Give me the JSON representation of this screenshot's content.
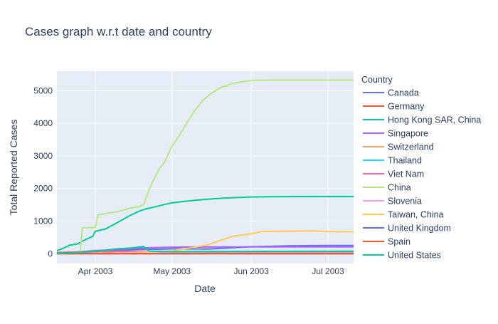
{
  "chart_data": {
    "type": "line",
    "title": "Cases graph w.r.t date and country",
    "xlabel": "Date",
    "ylabel": "Total Reported Cases",
    "legend_title": "Country",
    "legend_position": "right",
    "grid": true,
    "x_range": [
      "2003-03-17",
      "2003-07-11"
    ],
    "x_ticks": [
      {
        "date": "2003-04-01",
        "label": "Apr 2003"
      },
      {
        "date": "2003-05-01",
        "label": "May 2003"
      },
      {
        "date": "2003-06-01",
        "label": "Jun 2003"
      },
      {
        "date": "2003-07-01",
        "label": "Jul 2003"
      }
    ],
    "ylim": [
      -300,
      5600
    ],
    "y_ticks": [
      0,
      1000,
      2000,
      3000,
      4000,
      5000
    ],
    "series": [
      {
        "name": "Canada",
        "color": "#636efa",
        "points": [
          [
            "2003-03-17",
            8
          ],
          [
            "2003-03-25",
            15
          ],
          [
            "2003-04-01",
            62
          ],
          [
            "2003-04-10",
            97
          ],
          [
            "2003-04-20",
            132
          ],
          [
            "2003-04-26",
            140
          ],
          [
            "2003-05-01",
            149
          ],
          [
            "2003-05-15",
            143
          ],
          [
            "2003-06-01",
            214
          ],
          [
            "2003-06-15",
            240
          ],
          [
            "2003-07-01",
            251
          ],
          [
            "2003-07-11",
            251
          ]
        ]
      },
      {
        "name": "Germany",
        "color": "#EF553B",
        "points": [
          [
            "2003-03-17",
            3
          ],
          [
            "2003-04-01",
            5
          ],
          [
            "2003-04-15",
            6
          ],
          [
            "2003-05-01",
            9
          ],
          [
            "2003-06-01",
            10
          ],
          [
            "2003-07-11",
            10
          ]
        ]
      },
      {
        "name": "Hong Kong SAR, China",
        "color": "#00cc96",
        "points": [
          [
            "2003-03-17",
            95
          ],
          [
            "2003-03-19",
            150
          ],
          [
            "2003-03-22",
            260
          ],
          [
            "2003-03-25",
            300
          ],
          [
            "2003-03-28",
            425
          ],
          [
            "2003-03-31",
            530
          ],
          [
            "2003-04-01",
            685
          ],
          [
            "2003-04-05",
            760
          ],
          [
            "2003-04-10",
            970
          ],
          [
            "2003-04-14",
            1150
          ],
          [
            "2003-04-18",
            1300
          ],
          [
            "2003-04-21",
            1380
          ],
          [
            "2003-04-24",
            1430
          ],
          [
            "2003-04-28",
            1510
          ],
          [
            "2003-05-01",
            1560
          ],
          [
            "2003-05-05",
            1600
          ],
          [
            "2003-05-10",
            1640
          ],
          [
            "2003-05-15",
            1670
          ],
          [
            "2003-05-20",
            1700
          ],
          [
            "2003-05-25",
            1720
          ],
          [
            "2003-06-01",
            1740
          ],
          [
            "2003-06-10",
            1750
          ],
          [
            "2003-06-20",
            1755
          ],
          [
            "2003-07-01",
            1755
          ],
          [
            "2003-07-11",
            1755
          ]
        ]
      },
      {
        "name": "Singapore",
        "color": "#ab63fa",
        "points": [
          [
            "2003-03-17",
            20
          ],
          [
            "2003-03-25",
            55
          ],
          [
            "2003-04-01",
            95
          ],
          [
            "2003-04-10",
            126
          ],
          [
            "2003-04-20",
            178
          ],
          [
            "2003-05-01",
            201
          ],
          [
            "2003-05-15",
            205
          ],
          [
            "2003-06-01",
            206
          ],
          [
            "2003-07-01",
            206
          ],
          [
            "2003-07-11",
            206
          ]
        ]
      },
      {
        "name": "Switzerland",
        "color": "#FFA15A",
        "points": [
          [
            "2003-03-17",
            2
          ],
          [
            "2003-04-15",
            1
          ],
          [
            "2003-05-01",
            1
          ],
          [
            "2003-07-11",
            1
          ]
        ]
      },
      {
        "name": "Thailand",
        "color": "#19d3f3",
        "points": [
          [
            "2003-03-17",
            1
          ],
          [
            "2003-04-10",
            7
          ],
          [
            "2003-04-20",
            8
          ],
          [
            "2003-05-01",
            8
          ],
          [
            "2003-06-01",
            9
          ],
          [
            "2003-07-11",
            9
          ]
        ]
      },
      {
        "name": "Viet Nam",
        "color": "#FF6692",
        "points": [
          [
            "2003-03-17",
            40
          ],
          [
            "2003-03-25",
            55
          ],
          [
            "2003-04-01",
            58
          ],
          [
            "2003-04-15",
            62
          ],
          [
            "2003-05-01",
            63
          ],
          [
            "2003-06-01",
            63
          ],
          [
            "2003-07-11",
            63
          ]
        ]
      },
      {
        "name": "China",
        "color": "#B6E880",
        "points": [
          [
            "2003-03-17",
            0
          ],
          [
            "2003-03-26",
            0
          ],
          [
            "2003-03-27",
            792
          ],
          [
            "2003-04-01",
            806
          ],
          [
            "2003-04-02",
            1190
          ],
          [
            "2003-04-06",
            1250
          ],
          [
            "2003-04-10",
            1290
          ],
          [
            "2003-04-14",
            1390
          ],
          [
            "2003-04-18",
            1440
          ],
          [
            "2003-04-20",
            1510
          ],
          [
            "2003-04-22",
            1960
          ],
          [
            "2003-04-24",
            2300
          ],
          [
            "2003-04-26",
            2600
          ],
          [
            "2003-04-28",
            2800
          ],
          [
            "2003-05-01",
            3300
          ],
          [
            "2003-05-04",
            3640
          ],
          [
            "2003-05-07",
            4040
          ],
          [
            "2003-05-10",
            4400
          ],
          [
            "2003-05-13",
            4700
          ],
          [
            "2003-05-16",
            4900
          ],
          [
            "2003-05-20",
            5100
          ],
          [
            "2003-05-25",
            5230
          ],
          [
            "2003-06-01",
            5320
          ],
          [
            "2003-06-10",
            5327
          ],
          [
            "2003-06-20",
            5327
          ],
          [
            "2003-07-01",
            5327
          ],
          [
            "2003-07-11",
            5327
          ]
        ]
      },
      {
        "name": "Slovenia",
        "color": "#FF97FF",
        "points": [
          [
            "2003-03-17",
            1
          ],
          [
            "2003-07-11",
            1
          ]
        ]
      },
      {
        "name": "Taiwan, China",
        "color": "#FECB52",
        "points": [
          [
            "2003-03-17",
            3
          ],
          [
            "2003-04-01",
            13
          ],
          [
            "2003-04-15",
            29
          ],
          [
            "2003-05-01",
            90
          ],
          [
            "2003-05-10",
            200
          ],
          [
            "2003-05-15",
            270
          ],
          [
            "2003-05-20",
            410
          ],
          [
            "2003-05-25",
            540
          ],
          [
            "2003-06-01",
            610
          ],
          [
            "2003-06-05",
            680
          ],
          [
            "2003-06-15",
            690
          ],
          [
            "2003-06-25",
            700
          ],
          [
            "2003-07-01",
            680
          ],
          [
            "2003-07-11",
            671
          ]
        ]
      },
      {
        "name": "United Kingdom",
        "color": "#636efa",
        "points": [
          [
            "2003-03-17",
            3
          ],
          [
            "2003-04-01",
            3
          ],
          [
            "2003-04-15",
            5
          ],
          [
            "2003-05-01",
            6
          ],
          [
            "2003-07-11",
            6
          ]
        ]
      },
      {
        "name": "Spain",
        "color": "#EF553B",
        "points": [
          [
            "2003-03-17",
            0
          ],
          [
            "2003-04-01",
            1
          ],
          [
            "2003-07-11",
            1
          ]
        ]
      },
      {
        "name": "United States",
        "color": "#00cc96",
        "points": [
          [
            "2003-03-17",
            11
          ],
          [
            "2003-03-25",
            39
          ],
          [
            "2003-04-01",
            72
          ],
          [
            "2003-04-10",
            154
          ],
          [
            "2003-04-15",
            175
          ],
          [
            "2003-04-20",
            220
          ],
          [
            "2003-04-22",
            80
          ],
          [
            "2003-05-01",
            58
          ],
          [
            "2003-05-15",
            65
          ],
          [
            "2003-06-01",
            70
          ],
          [
            "2003-07-01",
            73
          ],
          [
            "2003-07-11",
            75
          ]
        ]
      }
    ]
  }
}
